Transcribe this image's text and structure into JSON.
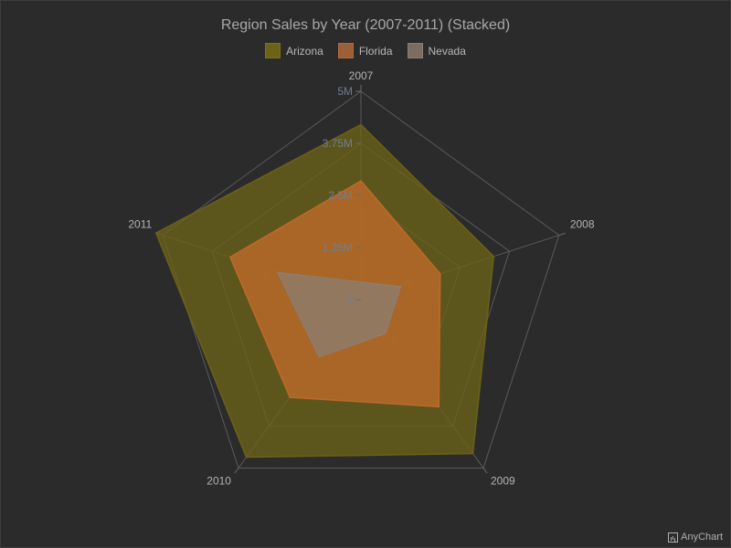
{
  "chart_data": {
    "type": "radar",
    "title": "Region Sales by Year (2007-2011) (Stacked)",
    "stacked": true,
    "categories": [
      "2007",
      "2008",
      "2009",
      "2010",
      "2011"
    ],
    "ylim": [
      0,
      5000000
    ],
    "yticks": [
      {
        "value": 0,
        "label": "0"
      },
      {
        "value": 1250000,
        "label": "1.25M"
      },
      {
        "value": 2500000,
        "label": "2.5M"
      },
      {
        "value": 3750000,
        "label": "3.75M"
      },
      {
        "value": 5000000,
        "label": "5M"
      }
    ],
    "legend_position": "top",
    "series": [
      {
        "name": "Nevada",
        "values": [
          420000,
          1000000,
          1000000,
          1700000,
          2100000
        ],
        "color": "#8c7d70"
      },
      {
        "name": "Florida",
        "values": [
          2430000,
          1000000,
          2180000,
          1200000,
          1200000
        ],
        "color": "#c06a2a"
      },
      {
        "name": "Arizona",
        "values": [
          1350000,
          1350000,
          1390000,
          1780000,
          1870000
        ],
        "color": "#6b6318"
      }
    ],
    "legend_order": [
      "Arizona",
      "Florida",
      "Nevada"
    ]
  },
  "credit": "AnyChart"
}
